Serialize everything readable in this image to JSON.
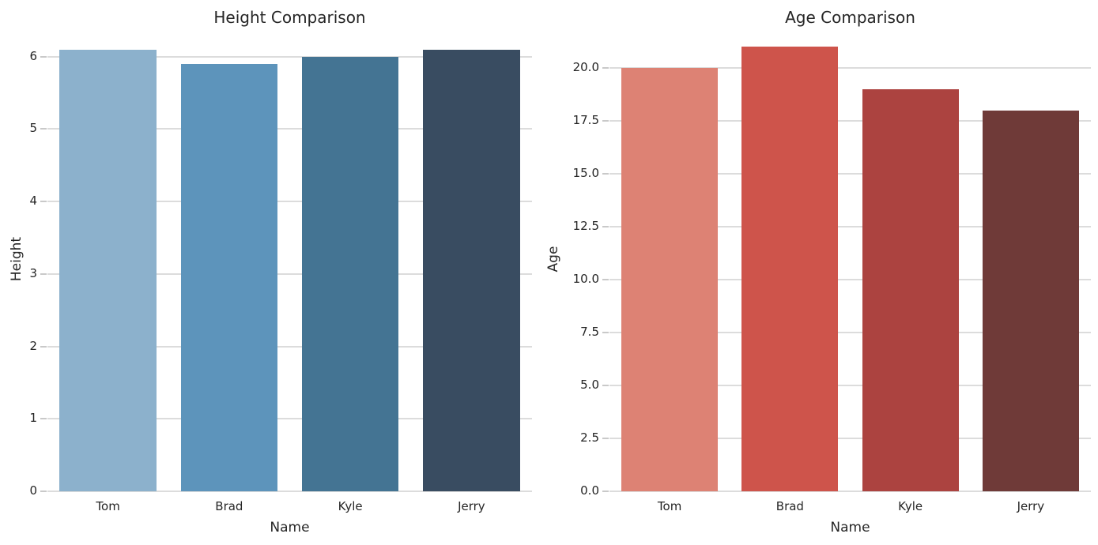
{
  "figure": {
    "background": "#ffffff",
    "text_color": "#262626",
    "grid_color": "#dcdcdc",
    "tick_color": "#c9c9c9"
  },
  "chart_data": [
    {
      "type": "bar",
      "title": "Height Comparison",
      "xlabel": "Name",
      "ylabel": "Height",
      "categories": [
        "Tom",
        "Brad",
        "Kyle",
        "Jerry"
      ],
      "values": [
        6.1,
        5.9,
        6.0,
        6.1
      ],
      "bar_colors": [
        "#8cb1cc",
        "#5d94bb",
        "#447493",
        "#394c61"
      ],
      "yticks": [
        0,
        1,
        2,
        3,
        4,
        5,
        6
      ],
      "ytick_labels": [
        "0",
        "1",
        "2",
        "3",
        "4",
        "5",
        "6"
      ],
      "ylim": [
        0,
        6.4
      ],
      "grid": true,
      "legend": "none",
      "bar_width_fraction": 0.8
    },
    {
      "type": "bar",
      "title": "Age Comparison",
      "xlabel": "Name",
      "ylabel": "Age",
      "categories": [
        "Tom",
        "Brad",
        "Kyle",
        "Jerry"
      ],
      "values": [
        20,
        21,
        19,
        18
      ],
      "bar_colors": [
        "#dd8274",
        "#ce544b",
        "#ac4340",
        "#6f3a38"
      ],
      "yticks": [
        0,
        2.5,
        5,
        7.5,
        10,
        12.5,
        15,
        17.5,
        20
      ],
      "ytick_labels": [
        "0.0",
        "2.5",
        "5.0",
        "7.5",
        "10.0",
        "12.5",
        "15.0",
        "17.5",
        "20.0"
      ],
      "ylim": [
        0,
        21.9
      ],
      "grid": true,
      "legend": "none",
      "bar_width_fraction": 0.8
    }
  ]
}
